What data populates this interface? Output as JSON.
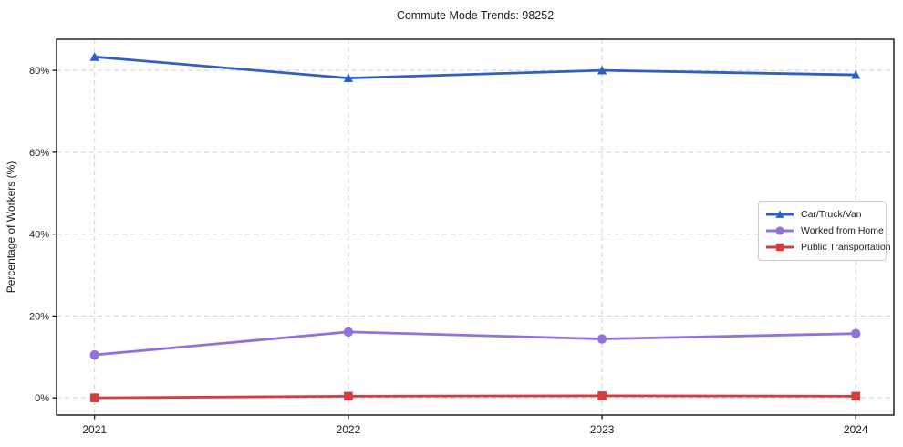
{
  "page": {
    "title": "Commute Mode Trends: 98252"
  },
  "chart_data": {
    "type": "line",
    "title": "Commute Mode Trends: 98252",
    "xlabel": "",
    "ylabel": "Percentage of Workers (%)",
    "categories": [
      2021,
      2022,
      2023,
      2024
    ],
    "x_tick_labels": [
      "2021",
      "2022",
      "2023",
      "2024"
    ],
    "y_ticks": [
      {
        "value": 0,
        "label": "0%"
      },
      {
        "value": 20,
        "label": "20%"
      },
      {
        "value": 40,
        "label": "40%"
      },
      {
        "value": 60,
        "label": "60%"
      },
      {
        "value": 80,
        "label": "80%"
      }
    ],
    "xlim": [
      2020.85,
      2024.15
    ],
    "ylim": [
      -4.2,
      87.6
    ],
    "grid": true,
    "grid_style": "dashed",
    "legend_position": "center-right",
    "series": [
      {
        "name": "Car/Truck/Van",
        "color": "#2e5fc3",
        "marker": "triangle",
        "values": [
          83.3,
          78.1,
          80.0,
          78.9
        ]
      },
      {
        "name": "Worked from Home",
        "color": "#9370db",
        "marker": "circle",
        "values": [
          10.5,
          16.1,
          14.4,
          15.7
        ]
      },
      {
        "name": "Public Transportation",
        "color": "#d93b3b",
        "marker": "square",
        "values": [
          0.0,
          0.4,
          0.5,
          0.4
        ]
      }
    ]
  },
  "colors": {
    "grid": "#cfcfcf",
    "spine": "#000000",
    "text": "#1a1a1a",
    "legend_border": "#cccccc",
    "background": "#ffffff"
  }
}
